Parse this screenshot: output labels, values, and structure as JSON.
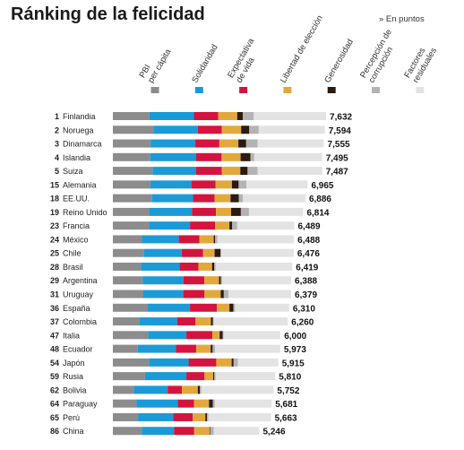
{
  "header": {
    "title": "Ránking de la felicidad",
    "unit_note": "» En puntos"
  },
  "chart_data": {
    "type": "bar",
    "stacked": true,
    "orientation": "horizontal",
    "title": "Ránking de la felicidad",
    "components": [
      {
        "label": [
          "PBI",
          "per cápita"
        ],
        "color": "#8c8c8c"
      },
      {
        "label": [
          "Solidaridad"
        ],
        "color": "#1b9ad7"
      },
      {
        "label": [
          "Expectativa",
          "de vida"
        ],
        "color": "#d4143f"
      },
      {
        "label": [
          "Libertad de elección"
        ],
        "color": "#e3a83c"
      },
      {
        "label": [
          "Generosidad"
        ],
        "color": "#2a1a10"
      },
      {
        "label": [
          "Percepción de",
          "corrupción"
        ],
        "color": "#b3b3b3"
      },
      {
        "label": [
          "Factores",
          "residuales"
        ],
        "color": "#e3e3e3"
      }
    ],
    "rows": [
      {
        "rank": "1",
        "country": "Finlandia",
        "total": "7,632",
        "parts": [
          1.31,
          1.59,
          0.87,
          0.68,
          0.2,
          0.39,
          2.59
        ]
      },
      {
        "rank": "2",
        "country": "Noruega",
        "total": "7,594",
        "parts": [
          1.46,
          1.58,
          0.86,
          0.69,
          0.29,
          0.34,
          2.37
        ]
      },
      {
        "rank": "3",
        "country": "Dinamarca",
        "total": "7,555",
        "parts": [
          1.35,
          1.59,
          0.87,
          0.68,
          0.28,
          0.41,
          2.37
        ]
      },
      {
        "rank": "4",
        "country": "Islandia",
        "total": "7,495",
        "parts": [
          1.34,
          1.64,
          0.91,
          0.68,
          0.35,
          0.14,
          2.43
        ]
      },
      {
        "rank": "5",
        "country": "Suiza",
        "total": "7,487",
        "parts": [
          1.42,
          1.55,
          0.93,
          0.66,
          0.26,
          0.36,
          2.31
        ]
      },
      {
        "rank": "15",
        "country": "Alemania",
        "total": "6,965",
        "parts": [
          1.34,
          1.47,
          0.86,
          0.59,
          0.24,
          0.28,
          2.19
        ]
      },
      {
        "rank": "18",
        "country": "EE.UU.",
        "total": "6,886",
        "parts": [
          1.4,
          1.47,
          0.77,
          0.57,
          0.3,
          0.14,
          2.24
        ]
      },
      {
        "rank": "19",
        "country": "Reino Unido",
        "total": "6,814",
        "parts": [
          1.3,
          1.53,
          0.86,
          0.54,
          0.35,
          0.29,
          1.94
        ]
      },
      {
        "rank": "23",
        "country": "Francia",
        "total": "6,489",
        "parts": [
          1.29,
          1.47,
          0.9,
          0.51,
          0.1,
          0.18,
          2.04
        ]
      },
      {
        "rank": "24",
        "country": "México",
        "total": "6,488",
        "parts": [
          1.04,
          1.32,
          0.74,
          0.51,
          0.05,
          0.08,
          2.74
        ]
      },
      {
        "rank": "25",
        "country": "Chile",
        "total": "6,476",
        "parts": [
          1.12,
          1.34,
          0.77,
          0.41,
          0.21,
          0.03,
          2.59
        ]
      },
      {
        "rank": "28",
        "country": "Brasil",
        "total": "6,419",
        "parts": [
          1.0,
          1.39,
          0.67,
          0.49,
          0.08,
          0.05,
          2.74
        ]
      },
      {
        "rank": "29",
        "country": "Argentina",
        "total": "6,388",
        "parts": [
          1.07,
          1.46,
          0.74,
          0.53,
          0.06,
          0.05,
          2.47
        ]
      },
      {
        "rank": "31",
        "country": "Uruguay",
        "total": "6,379",
        "parts": [
          1.09,
          1.43,
          0.76,
          0.58,
          0.11,
          0.17,
          2.24
        ]
      },
      {
        "rank": "36",
        "country": "España",
        "total": "6,310",
        "parts": [
          1.25,
          1.51,
          0.96,
          0.45,
          0.14,
          0.06,
          1.94
        ]
      },
      {
        "rank": "37",
        "country": "Colombia",
        "total": "6,260",
        "parts": [
          0.94,
          1.36,
          0.66,
          0.55,
          0.07,
          0.03,
          2.65
        ]
      },
      {
        "rank": "47",
        "country": "Italia",
        "total": "6,000",
        "parts": [
          1.26,
          1.37,
          0.93,
          0.26,
          0.11,
          0.03,
          2.04
        ]
      },
      {
        "rank": "48",
        "country": "Ecuador",
        "total": "5,973",
        "parts": [
          0.89,
          1.37,
          0.72,
          0.52,
          0.07,
          0.09,
          2.33
        ]
      },
      {
        "rank": "54",
        "country": "Japón",
        "total": "5,915",
        "parts": [
          1.29,
          1.42,
          0.99,
          0.55,
          0.07,
          0.15,
          1.45
        ]
      },
      {
        "rank": "59",
        "country": "Rusia",
        "total": "5,810",
        "parts": [
          1.15,
          1.48,
          0.65,
          0.31,
          0.04,
          0.05,
          2.13
        ]
      },
      {
        "rank": "62",
        "country": "Bolivia",
        "total": "5,752",
        "parts": [
          0.75,
          1.21,
          0.51,
          0.57,
          0.07,
          0.06,
          2.58
        ]
      },
      {
        "rank": "64",
        "country": "Paraguay",
        "total": "5,681",
        "parts": [
          0.84,
          1.48,
          0.58,
          0.54,
          0.14,
          0.07,
          2.03
        ]
      },
      {
        "rank": "65",
        "country": "Perú",
        "total": "5,663",
        "parts": [
          0.9,
          1.26,
          0.7,
          0.45,
          0.06,
          0.05,
          2.24
        ]
      },
      {
        "rank": "86",
        "country": "China",
        "total": "5,246",
        "parts": [
          1.03,
          1.16,
          0.72,
          0.55,
          0.02,
          0.13,
          1.63
        ]
      }
    ]
  }
}
